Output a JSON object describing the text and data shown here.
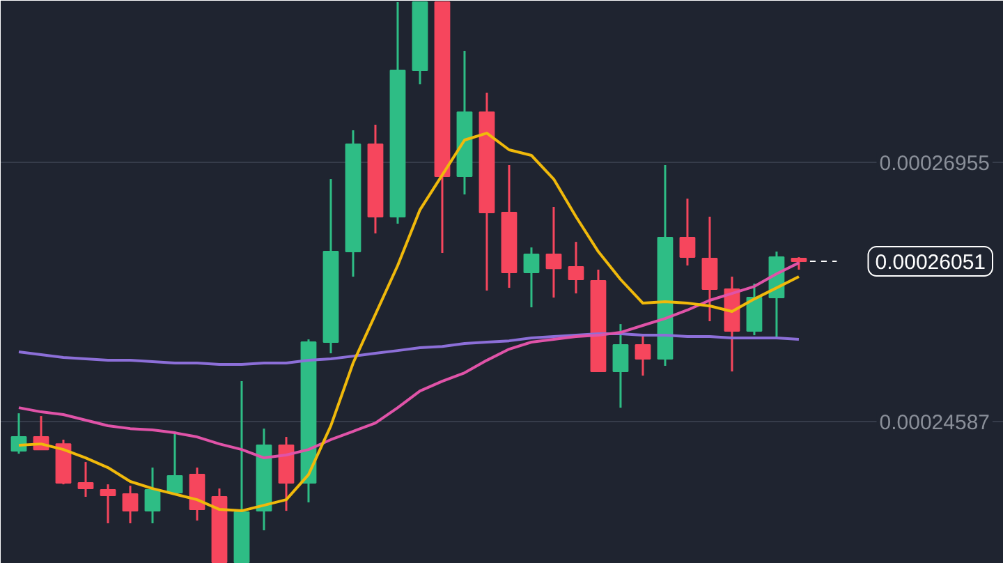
{
  "chart_data": {
    "type": "candlestick",
    "categories": [
      null,
      null,
      null,
      null,
      null,
      null,
      null,
      null,
      null,
      null,
      null,
      null,
      null,
      null,
      null,
      null,
      null,
      null,
      null,
      null,
      null,
      null,
      null,
      null,
      null,
      null,
      null,
      null,
      null,
      null,
      null,
      null,
      null,
      null,
      null,
      null
    ],
    "ohlc": [
      [
        0.0002432,
        0.00024663,
        0.00024294,
        0.00024447
      ],
      [
        0.00024447,
        0.00024638,
        0.00024332,
        0.00024332
      ],
      [
        0.00024383,
        0.00024422,
        0.00024014,
        0.00024027
      ],
      [
        0.00024027,
        0.00024218,
        0.000239,
        0.00023976
      ],
      [
        0.00023963,
        0.00024014,
        0.00023658,
        0.00023912
      ],
      [
        0.00023925,
        0.00024001,
        0.00023658,
        0.00023772
      ],
      [
        0.00023772,
        0.00024167,
        0.00023658,
        0.00023963
      ],
      [
        0.00023938,
        0.00024498,
        0.00023925,
        0.00024091
      ],
      [
        0.00024103,
        0.00024167,
        0.00023683,
        0.00023785
      ],
      [
        0.000239,
        0.00023976,
        0.00023301,
        0.00023301
      ],
      [
        0.00023301,
        0.00024956,
        0.00023301,
        0.0002376
      ],
      [
        0.00023772,
        0.00024523,
        0.00023594,
        0.00024371
      ],
      [
        0.00024371,
        0.00024447,
        0.00023772,
        0.00024027
      ],
      [
        0.00024027,
        0.00025338,
        0.00023849,
        0.00025313
      ],
      [
        0.00025313,
        0.00026802,
        0.00025211,
        0.0002614
      ],
      [
        0.0002614,
        0.00027248,
        0.00025911,
        0.00027121
      ],
      [
        0.00027121,
        0.00027299,
        0.00026306,
        0.00026459
      ],
      [
        0.00026459,
        0.00028419,
        0.00026395,
        0.00027795
      ],
      [
        0.00027795,
        0.00028419,
        0.00027668,
        0.00028419
      ],
      [
        0.00028419,
        0.00028419,
        0.00026128,
        0.00026828
      ],
      [
        0.00026828,
        0.00027974,
        0.00026662,
        0.00027413
      ],
      [
        0.00027413,
        0.00027592,
        0.00025784,
        0.00026497
      ],
      [
        0.00026497,
        0.0002693,
        0.00025809,
        0.00025949
      ],
      [
        0.00025949,
        0.00026178,
        0.00025631,
        0.00026115
      ],
      [
        0.00026115,
        0.00026548,
        0.0002572,
        0.00025987
      ],
      [
        0.00026,
        0.00026229,
        0.00025758,
        0.00025886
      ],
      [
        0.00025873,
        0.00025975,
        0.00025045,
        0.00025045
      ],
      [
        0.00025045,
        0.00025478,
        0.00024714,
        0.00025287
      ],
      [
        0.00025287,
        0.00025389,
        0.00025007,
        0.0002516
      ],
      [
        0.0002516,
        0.0002693,
        0.00025096,
        0.00026268
      ],
      [
        0.00026268,
        0.00026624,
        0.00026013,
        0.00026089
      ],
      [
        0.00026077,
        0.00026459,
        0.00025504,
        0.00025797
      ],
      [
        0.00025797,
        0.00025911,
        0.00025045,
        0.00025415
      ],
      [
        0.00025415,
        0.00025847,
        0.00025376,
        0.0002572
      ],
      [
        0.0002572,
        0.0002614,
        0.00025351,
        0.00026089
      ],
      [
        0.00026077,
        0.00026089,
        0.00025975,
        0.00026051
      ]
    ],
    "colors": [
      "#2ebd85",
      "#f6465d",
      "#f6465d",
      "#f6465d",
      "#f6465d",
      "#f6465d",
      "#2ebd85",
      "#2ebd85",
      "#f6465d",
      "#f6465d",
      "#2ebd85",
      "#2ebd85",
      "#f6465d",
      "#2ebd85",
      "#2ebd85",
      "#2ebd85",
      "#f6465d",
      "#2ebd85",
      "#2ebd85",
      "#f6465d",
      "#2ebd85",
      "#f6465d",
      "#f6465d",
      "#2ebd85",
      "#f6465d",
      "#f6465d",
      "#f6465d",
      "#2ebd85",
      "#f6465d",
      "#2ebd85",
      "#f6465d",
      "#f6465d",
      "#f6465d",
      "#2ebd85",
      "#2ebd85",
      "#f6465d"
    ],
    "series": [
      {
        "type": "line",
        "color": "#8c6fd8",
        "values": [
          0.00025224,
          0.00025198,
          0.00025173,
          0.0002516,
          0.00025147,
          0.00025147,
          0.00025135,
          0.00025122,
          0.00025122,
          0.00025109,
          0.00025109,
          0.00025122,
          0.00025122,
          0.00025147,
          0.0002516,
          0.00025185,
          0.00025211,
          0.00025236,
          0.00025262,
          0.00025274,
          0.000253,
          0.00025313,
          0.00025325,
          0.00025351,
          0.00025364,
          0.00025376,
          0.00025389,
          0.00025389,
          0.00025376,
          0.00025376,
          0.00025364,
          0.00025364,
          0.00025351,
          0.00025351,
          0.00025351,
          0.00025338
        ]
      },
      {
        "type": "line",
        "color": "#e053a8",
        "values": [
          0.00024714,
          0.00024676,
          0.00024651,
          0.000246,
          0.00024549,
          0.00024523,
          0.00024511,
          0.00024485,
          0.00024447,
          0.00024383,
          0.00024332,
          0.00024256,
          0.00024282,
          0.00024332,
          0.00024422,
          0.00024498,
          0.00024574,
          0.00024714,
          0.00024867,
          0.00024956,
          0.00025033,
          0.00025147,
          0.00025249,
          0.00025313,
          0.00025338,
          0.00025364,
          0.00025376,
          0.00025402,
          0.00025466,
          0.00025529,
          0.00025606,
          0.00025695,
          0.00025758,
          0.00025822,
          0.00025937,
          0.00026038
        ]
      },
      {
        "type": "line",
        "color": "#f0b90b",
        "values": [
          0.00024371,
          0.00024383,
          0.00024332,
          0.00024256,
          0.00024167,
          0.0002404,
          0.00023976,
          0.00023925,
          0.00023874,
          0.00023785,
          0.00023772,
          0.00023823,
          0.00023874,
          0.00024103,
          0.00024549,
          0.00025122,
          0.00025567,
          0.00026013,
          0.00026522,
          0.0002684,
          0.00027159,
          0.00027222,
          0.0002707,
          0.00027019,
          0.00026802,
          0.00026459,
          0.0002614,
          0.00025886,
          0.00025669,
          0.00025682,
          0.00025669,
          0.00025644,
          0.00025593,
          0.00025707,
          0.00025809,
          0.00025911
        ]
      }
    ],
    "ylim": [
      0.00023289,
      0.00028432
    ],
    "yticks": [
      0.00026955,
      0.00024587
    ],
    "tick_labels": "y",
    "grid": "y",
    "annotations": [
      "0.00026051"
    ]
  }
}
